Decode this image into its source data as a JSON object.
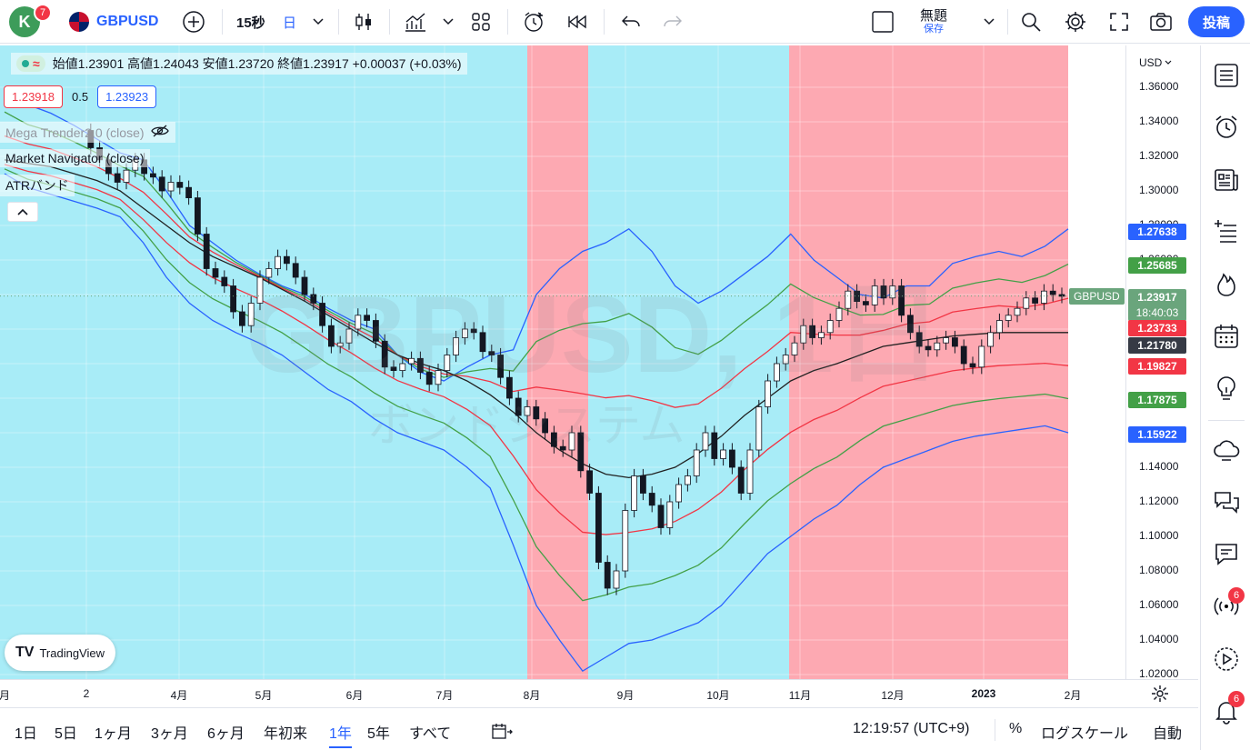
{
  "topbar": {
    "avatar_letter": "K",
    "avatar_badge": "7",
    "symbol": "GBPUSD",
    "interval_seconds": "15秒",
    "interval_day": "日",
    "layout_name": "無題",
    "save_label": "保存",
    "post_label": "投稿"
  },
  "legend": {
    "ohlc_text": "始値1.23901 高値1.24043 安値1.23720 終値1.23917 +0.00037 (+0.03%)",
    "sell_price": "1.23918",
    "spread": "0.5",
    "buy_price": "1.23923",
    "indicators": [
      "Mega Trender2.0 (close)",
      "Market Navigator (close)",
      "ATRバンド"
    ]
  },
  "watermark": {
    "title": "GBPUSD, 1日",
    "subtitle": "ボンドシステム"
  },
  "price_axis": {
    "currency": "USD",
    "ticks": [
      "1.36000",
      "1.34000",
      "1.32000",
      "1.30000",
      "1.28000",
      "1.26000",
      "1.24000",
      "1.22000",
      "1.20000",
      "1.18000",
      "1.16000",
      "1.14000",
      "1.12000",
      "1.10000",
      "1.08000",
      "1.06000",
      "1.04000",
      "1.02000"
    ],
    "labels": [
      {
        "value": "1.27638",
        "color": "#2962ff"
      },
      {
        "value": "1.25685",
        "color": "#43a047"
      },
      {
        "value": "1.23917",
        "color": "#6aa57c"
      },
      {
        "value": "18:40:03",
        "color": "#6aa57c"
      },
      {
        "value": "1.23733",
        "color": "#f23645"
      },
      {
        "value": "1.21780",
        "color": "#363a45"
      },
      {
        "value": "1.19827",
        "color": "#f23645"
      },
      {
        "value": "1.17875",
        "color": "#43a047"
      },
      {
        "value": "1.15922",
        "color": "#2962ff"
      }
    ],
    "symbol_tag": "GBPUSD"
  },
  "time_axis": {
    "labels": [
      "月",
      "2",
      "4月",
      "5月",
      "6月",
      "7月",
      "8月",
      "9月",
      "10月",
      "11月",
      "12月",
      "2023",
      "2月"
    ]
  },
  "bottombar": {
    "ranges": [
      "1日",
      "5日",
      "1ヶ月",
      "3ヶ月",
      "6ヶ月",
      "年初来",
      "1年",
      "5年",
      "すべて"
    ],
    "active_range": "1年",
    "time": "12:19:57 (UTC+9)",
    "percent": "%",
    "log_scale": "ログスケール",
    "auto": "自動"
  },
  "branding": "TradingView",
  "rightbar": {
    "alert_badge_1": "6",
    "alert_badge_2": "6"
  },
  "colors": {
    "bg_cyan": "#a8ecf7",
    "bg_pink": "#fda9b2",
    "band_blue": "#2962ff",
    "band_green": "#43a047",
    "band_red": "#f23645",
    "ma": "#212121",
    "accent": "#2962ff"
  },
  "chart_data": {
    "type": "candlestick",
    "symbol": "GBPUSD",
    "timeframe": "1D",
    "ylim": [
      1.01,
      1.37
    ],
    "shading": [
      {
        "from": "start",
        "to": "8月",
        "color": "cyan"
      },
      {
        "from": "8月",
        "to": "8月下旬",
        "color": "pink"
      },
      {
        "from": "8月下旬",
        "to": "11月",
        "color": "cyan"
      },
      {
        "from": "11月",
        "to": "2月",
        "color": "pink"
      }
    ],
    "close_series": [
      1.335,
      1.325,
      1.318,
      1.31,
      1.305,
      1.312,
      1.318,
      1.31,
      1.308,
      1.3,
      1.305,
      1.302,
      1.296,
      1.275,
      1.255,
      1.25,
      1.245,
      1.23,
      1.222,
      1.235,
      1.25,
      1.255,
      1.262,
      1.258,
      1.25,
      1.24,
      1.235,
      1.222,
      1.21,
      1.212,
      1.22,
      1.228,
      1.225,
      1.213,
      1.198,
      1.196,
      1.2,
      1.203,
      1.195,
      1.188,
      1.196,
      1.205,
      1.215,
      1.22,
      1.218,
      1.207,
      1.205,
      1.192,
      1.18,
      1.17,
      1.175,
      1.168,
      1.16,
      1.152,
      1.15,
      1.16,
      1.138,
      1.125,
      1.085,
      1.07,
      1.08,
      1.115,
      1.135,
      1.125,
      1.118,
      1.105,
      1.12,
      1.13,
      1.135,
      1.15,
      1.16,
      1.145,
      1.15,
      1.14,
      1.125,
      1.15,
      1.175,
      1.19,
      1.2,
      1.205,
      1.212,
      1.222,
      1.215,
      1.218,
      1.225,
      1.232,
      1.242,
      1.236,
      1.234,
      1.245,
      1.238,
      1.245,
      1.228,
      1.218,
      1.21,
      1.208,
      1.212,
      1.215,
      1.21,
      1.2,
      1.198,
      1.21,
      1.218,
      1.225,
      1.228,
      1.232,
      1.238,
      1.235,
      1.242,
      1.24,
      1.239
    ],
    "upper_blue": [
      1.36,
      1.35,
      1.345,
      1.338,
      1.33,
      1.322,
      1.318,
      1.3,
      1.28,
      1.27,
      1.26,
      1.252,
      1.245,
      1.24,
      1.232,
      1.225,
      1.22,
      1.205,
      1.195,
      1.19,
      1.198,
      1.205,
      1.208,
      1.24,
      1.255,
      1.265,
      1.27,
      1.278,
      1.265,
      1.245,
      1.235,
      1.242,
      1.252,
      1.262,
      1.275,
      1.26,
      1.25,
      1.24,
      1.238,
      1.245,
      1.245,
      1.258,
      1.262,
      1.265,
      1.262,
      1.268,
      1.278
    ],
    "lower_blue": [
      1.31,
      1.302,
      1.298,
      1.294,
      1.29,
      1.285,
      1.27,
      1.25,
      1.235,
      1.225,
      1.218,
      1.212,
      1.205,
      1.195,
      1.185,
      1.178,
      1.168,
      1.16,
      1.155,
      1.15,
      1.14,
      1.128,
      1.095,
      1.06,
      1.04,
      1.022,
      1.03,
      1.038,
      1.04,
      1.045,
      1.05,
      1.06,
      1.075,
      1.09,
      1.1,
      1.11,
      1.118,
      1.13,
      1.14,
      1.145,
      1.15,
      1.155,
      1.158,
      1.16,
      1.162,
      1.164,
      1.16
    ],
    "ma_black": [
      1.318,
      1.316,
      1.314,
      1.31,
      1.306,
      1.3,
      1.29,
      1.28,
      1.27,
      1.262,
      1.256,
      1.25,
      1.243,
      1.236,
      1.228,
      1.22,
      1.212,
      1.205,
      1.2,
      1.196,
      1.19,
      1.182,
      1.172,
      1.16,
      1.15,
      1.142,
      1.136,
      1.134,
      1.136,
      1.14,
      1.148,
      1.158,
      1.17,
      1.18,
      1.19,
      1.196,
      1.2,
      1.205,
      1.21,
      1.212,
      1.214,
      1.216,
      1.217,
      1.218,
      1.218,
      1.218,
      1.218
    ]
  }
}
